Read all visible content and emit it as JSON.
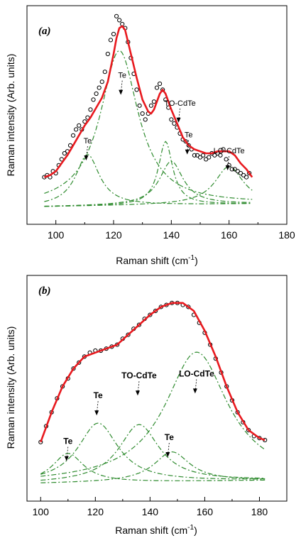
{
  "chart_data": [
    {
      "panel": "(a)",
      "type": "line",
      "xlabel": "Raman shift (cm",
      "xlabel_sup": "-1",
      "xlabel_end": ")",
      "ylabel": "Raman intensity (Arb. units)",
      "xlim": [
        90,
        180
      ],
      "ylim": [
        0,
        100
      ],
      "xticks": [
        100,
        120,
        140,
        160,
        180
      ],
      "y_tick_labels": false,
      "colors": {
        "fit": "#e8191e",
        "components": "#2e8b2e",
        "data": "#000000"
      },
      "series": [
        {
          "name": "",
          "style": "open circles",
          "x": [
            96,
            97,
            98,
            99,
            100,
            101,
            102,
            103,
            104,
            105,
            106,
            107,
            108,
            109,
            110,
            111,
            112,
            113,
            114,
            115,
            116,
            117,
            118,
            119,
            120,
            121,
            122,
            123,
            124,
            125,
            126,
            127,
            128,
            129,
            130,
            131,
            132,
            133,
            134,
            135,
            136,
            137,
            138,
            139,
            140,
            141,
            142,
            143,
            144,
            145,
            146,
            147,
            148,
            149,
            150,
            151,
            152,
            153,
            154,
            155,
            156,
            157,
            158,
            159,
            160,
            161,
            162,
            163,
            164,
            165,
            166,
            167
          ],
          "y": [
            18,
            19,
            18,
            21,
            20,
            24,
            27,
            30,
            31,
            34,
            39,
            42,
            44,
            42,
            46,
            48,
            52,
            57,
            60,
            63,
            66,
            71,
            80,
            87,
            90,
            99,
            97,
            95,
            93,
            86,
            78,
            70,
            62,
            54,
            50,
            47,
            50,
            54,
            56,
            63,
            65,
            62,
            57,
            53,
            47,
            45,
            43,
            40,
            37,
            36,
            34,
            32,
            29,
            29,
            28,
            29,
            27,
            28,
            30,
            29,
            30,
            29,
            32,
            27,
            24,
            22,
            22,
            21,
            20,
            19,
            18,
            20
          ]
        },
        {
          "name": "",
          "style": "solid red fit",
          "x": [
            96,
            98,
            100,
            102,
            104,
            106,
            108,
            110,
            112,
            114,
            116,
            118,
            120,
            121,
            122,
            123,
            124,
            126,
            128,
            130,
            132,
            133,
            134,
            136,
            137,
            138,
            140,
            142,
            144,
            146,
            148,
            150,
            152,
            154,
            156,
            158,
            160,
            162,
            164,
            166,
            168
          ],
          "y": [
            18,
            19,
            21,
            25,
            29,
            34,
            39,
            44,
            48,
            53,
            58,
            66,
            80,
            88,
            93,
            94,
            92,
            80,
            68,
            57,
            51,
            50,
            52,
            60,
            62,
            60,
            52,
            45,
            38,
            34,
            32,
            31,
            30,
            30,
            31,
            31,
            31,
            29,
            25,
            22,
            18
          ]
        },
        {
          "name": "",
          "style": "component",
          "center": 111,
          "height": 26,
          "width": 5
        },
        {
          "name": "",
          "style": "component",
          "center": 122,
          "height": 78,
          "width": 8
        },
        {
          "name": "",
          "style": "component",
          "center": 140,
          "height": 22,
          "width": 5
        },
        {
          "name": "",
          "style": "component",
          "center": 138,
          "height": 32,
          "width": 3
        },
        {
          "name": "",
          "style": "component",
          "center": 160,
          "height": 19,
          "width": 6
        }
      ],
      "annotations": [
        {
          "text": "Te",
          "x": 111,
          "y": 35
        },
        {
          "text": "Te",
          "x": 123,
          "y": 68
        },
        {
          "text": "TO-CdTe",
          "x": 143,
          "y": 54
        },
        {
          "text": "Te",
          "x": 146,
          "y": 38
        },
        {
          "text": "LO-CdTe",
          "x": 160,
          "y": 30
        }
      ]
    },
    {
      "panel": "(b)",
      "type": "line",
      "xlabel": "Raman shift (cm",
      "xlabel_sup": "-1",
      "xlabel_end": ")",
      "ylabel": "Raman intensity (Arb. units)",
      "xlim": [
        95,
        190
      ],
      "ylim": [
        0,
        100
      ],
      "xticks": [
        100,
        120,
        140,
        160,
        180
      ],
      "y_tick_labels": false,
      "colors": {
        "fit": "#e8191e",
        "components": "#2e8b2e",
        "data": "#000000"
      },
      "series": [
        {
          "name": "",
          "style": "open circles",
          "x": [
            100,
            102,
            104,
            106,
            108,
            110,
            112,
            114,
            116,
            118,
            120,
            122,
            124,
            126,
            128,
            130,
            132,
            134,
            136,
            138,
            140,
            142,
            144,
            146,
            148,
            150,
            152,
            154,
            156,
            158,
            160,
            162,
            164,
            166,
            168,
            170,
            172,
            174,
            176,
            178,
            180,
            182
          ],
          "y": [
            24,
            32,
            39,
            46,
            52,
            56,
            61,
            64,
            67,
            69,
            70,
            70,
            71,
            72,
            73,
            76,
            78,
            81,
            83,
            86,
            88,
            90,
            92,
            93,
            94,
            94,
            93,
            92,
            88,
            84,
            79,
            73,
            66,
            59,
            52,
            45,
            39,
            34,
            30,
            27,
            26,
            25
          ],
          "marker_every": 1
        },
        {
          "name": "",
          "style": "solid red fit",
          "x": [
            100,
            104,
            108,
            112,
            116,
            120,
            124,
            128,
            132,
            136,
            140,
            144,
            148,
            152,
            156,
            160,
            164,
            168,
            172,
            176,
            180,
            182
          ],
          "y": [
            24,
            39,
            52,
            61,
            67,
            69,
            71,
            73,
            78,
            83,
            88,
            92,
            94,
            94,
            90,
            80,
            67,
            52,
            39,
            30,
            26,
            25
          ]
        },
        {
          "name": "",
          "style": "component",
          "center": 110,
          "height": 15,
          "width": 7
        },
        {
          "name": "",
          "style": "component",
          "center": 121,
          "height": 30,
          "width": 9
        },
        {
          "name": "",
          "style": "component",
          "center": 136,
          "height": 29,
          "width": 9
        },
        {
          "name": "",
          "style": "component",
          "center": 148,
          "height": 15,
          "width": 8
        },
        {
          "name": "",
          "style": "component",
          "center": 157,
          "height": 65,
          "width": 14
        }
      ],
      "annotations": [
        {
          "text": "Te",
          "x": 110,
          "y": 23
        },
        {
          "text": "Te",
          "x": 121,
          "y": 46
        },
        {
          "text": "TO-CdTe",
          "x": 136,
          "y": 56
        },
        {
          "text": "LO-CdTe",
          "x": 157,
          "y": 57
        },
        {
          "text": "Te",
          "x": 147,
          "y": 25
        }
      ]
    }
  ]
}
